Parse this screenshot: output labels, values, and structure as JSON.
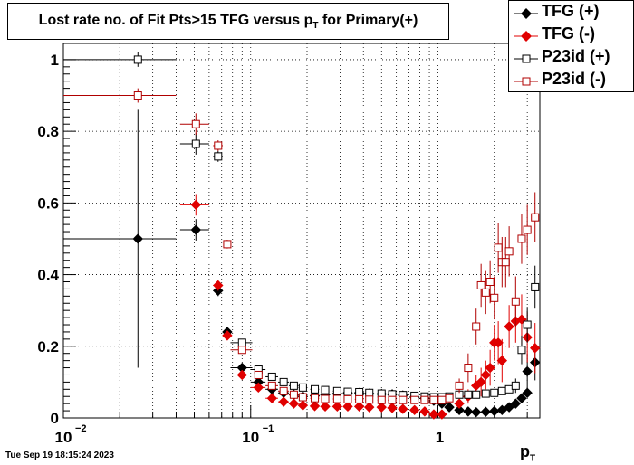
{
  "title": {
    "main": "Lost rate no. of Fit Pts>15 TFG versus p",
    "sub": "T",
    "tail": " for Primary(+)"
  },
  "timestamp": "Tue Sep 19 18:15:24 2023",
  "colors": {
    "black": "#000000",
    "red": "#e00000",
    "darkred": "#b00000",
    "grid": "#000000"
  },
  "chart_data": {
    "type": "scatter",
    "xscale": "log",
    "xlim": [
      0.01,
      3.5
    ],
    "ylim": [
      0,
      1.02
    ],
    "xlabel": {
      "main": "p",
      "sub": "T"
    },
    "xticks": [
      {
        "value": 0.01,
        "base": "10",
        "exp": "−2"
      },
      {
        "value": 0.1,
        "base": "10",
        "exp": "−1"
      },
      {
        "value": 1,
        "base": "1",
        "exp": ""
      }
    ],
    "yticks": [
      "0",
      "0.2",
      "0.4",
      "0.6",
      "0.8",
      "1"
    ],
    "grid": true,
    "legend_position": "top-right",
    "series": [
      {
        "name": "TFG (+)",
        "marker": "diamond",
        "filled": true,
        "color": "#000000",
        "points": [
          [
            0.025,
            0.5,
            0.015,
            0.36
          ],
          [
            0.051,
            0.525,
            0.009,
            0.03
          ],
          [
            0.067,
            0.355,
            0.004,
            0.015
          ],
          [
            0.075,
            0.24,
            0.003,
            0.012
          ],
          [
            0.09,
            0.14,
            0.012,
            0.01
          ],
          [
            0.11,
            0.1,
            0.01,
            0.01
          ],
          [
            0.13,
            0.08,
            0.01,
            0.008
          ],
          [
            0.15,
            0.07,
            0.01,
            0.006
          ],
          [
            0.17,
            0.065,
            0.01,
            0.005
          ],
          [
            0.19,
            0.06,
            0.01,
            0.004
          ],
          [
            0.22,
            0.062,
            0.012,
            0.004
          ],
          [
            0.25,
            0.065,
            0.012,
            0.004
          ],
          [
            0.29,
            0.068,
            0.015,
            0.004
          ],
          [
            0.33,
            0.07,
            0.015,
            0.004
          ],
          [
            0.38,
            0.07,
            0.02,
            0.004
          ],
          [
            0.43,
            0.068,
            0.02,
            0.004
          ],
          [
            0.5,
            0.067,
            0.025,
            0.004
          ],
          [
            0.57,
            0.066,
            0.03,
            0.004
          ],
          [
            0.65,
            0.063,
            0.03,
            0.004
          ],
          [
            0.75,
            0.058,
            0.035,
            0.004
          ],
          [
            0.85,
            0.055,
            0.04,
            0.005
          ],
          [
            0.95,
            0.048,
            0.04,
            0.005
          ],
          [
            1.05,
            0.04,
            0.04,
            0.005
          ],
          [
            1.15,
            0.03,
            0.04,
            0.005
          ],
          [
            1.3,
            0.022,
            0.05,
            0.004
          ],
          [
            1.45,
            0.018,
            0.05,
            0.004
          ],
          [
            1.6,
            0.016,
            0.05,
            0.004
          ],
          [
            1.8,
            0.017,
            0.06,
            0.004
          ],
          [
            2.0,
            0.019,
            0.06,
            0.005
          ],
          [
            2.2,
            0.022,
            0.06,
            0.005
          ],
          [
            2.4,
            0.03,
            0.06,
            0.006
          ],
          [
            2.6,
            0.04,
            0.07,
            0.007
          ],
          [
            2.8,
            0.055,
            0.08,
            0.008
          ],
          [
            3.0,
            0.07,
            0.08,
            0.01
          ],
          [
            3.0,
            0.13,
            0.05,
            0.05
          ],
          [
            3.3,
            0.155,
            0.05,
            0.05
          ]
        ]
      },
      {
        "name": "TFG (-)",
        "marker": "diamond",
        "filled": true,
        "color": "#e00000",
        "points": [
          [
            0.051,
            0.595,
            0.009,
            0.03
          ],
          [
            0.067,
            0.37,
            0.004,
            0.015
          ],
          [
            0.075,
            0.23,
            0.003,
            0.012
          ],
          [
            0.09,
            0.12,
            0.012,
            0.01
          ],
          [
            0.11,
            0.085,
            0.01,
            0.01
          ],
          [
            0.13,
            0.055,
            0.01,
            0.008
          ],
          [
            0.15,
            0.045,
            0.01,
            0.006
          ],
          [
            0.17,
            0.04,
            0.01,
            0.005
          ],
          [
            0.19,
            0.035,
            0.01,
            0.004
          ],
          [
            0.22,
            0.033,
            0.012,
            0.004
          ],
          [
            0.25,
            0.032,
            0.012,
            0.004
          ],
          [
            0.29,
            0.032,
            0.015,
            0.004
          ],
          [
            0.33,
            0.032,
            0.015,
            0.004
          ],
          [
            0.38,
            0.032,
            0.02,
            0.004
          ],
          [
            0.43,
            0.03,
            0.02,
            0.004
          ],
          [
            0.5,
            0.03,
            0.025,
            0.004
          ],
          [
            0.57,
            0.028,
            0.03,
            0.004
          ],
          [
            0.65,
            0.025,
            0.03,
            0.004
          ],
          [
            0.75,
            0.022,
            0.035,
            0.004
          ],
          [
            0.85,
            0.018,
            0.04,
            0.005
          ],
          [
            0.95,
            0.01,
            0.04,
            0.005
          ],
          [
            1.05,
            0.01,
            0.04,
            0.005
          ],
          [
            1.3,
            0.04,
            0.05,
            0.01
          ],
          [
            1.45,
            0.06,
            0.05,
            0.02
          ],
          [
            1.6,
            0.09,
            0.05,
            0.03
          ],
          [
            1.7,
            0.1,
            0.05,
            0.04
          ],
          [
            1.8,
            0.12,
            0.05,
            0.04
          ],
          [
            1.9,
            0.14,
            0.05,
            0.05
          ],
          [
            2.0,
            0.21,
            0.05,
            0.05
          ],
          [
            2.1,
            0.21,
            0.05,
            0.06
          ],
          [
            2.2,
            0.16,
            0.05,
            0.06
          ],
          [
            2.4,
            0.255,
            0.05,
            0.06
          ],
          [
            2.6,
            0.27,
            0.06,
            0.06
          ],
          [
            2.8,
            0.275,
            0.06,
            0.07
          ],
          [
            3.0,
            0.225,
            0.06,
            0.07
          ],
          [
            3.3,
            0.195,
            0.06,
            0.07
          ]
        ]
      },
      {
        "name": "P23id (+)",
        "marker": "square",
        "filled": false,
        "color": "#000000",
        "points": [
          [
            0.025,
            1.0,
            0.015,
            0.02
          ],
          [
            0.051,
            0.765,
            0.009,
            0.03
          ],
          [
            0.067,
            0.73,
            0.004,
            0.015
          ],
          [
            0.09,
            0.21,
            0.012,
            0.01
          ],
          [
            0.11,
            0.135,
            0.01,
            0.01
          ],
          [
            0.13,
            0.115,
            0.01,
            0.008
          ],
          [
            0.15,
            0.1,
            0.01,
            0.006
          ],
          [
            0.17,
            0.09,
            0.01,
            0.005
          ],
          [
            0.19,
            0.085,
            0.01,
            0.004
          ],
          [
            0.22,
            0.08,
            0.012,
            0.004
          ],
          [
            0.25,
            0.078,
            0.012,
            0.004
          ],
          [
            0.29,
            0.075,
            0.015,
            0.004
          ],
          [
            0.33,
            0.073,
            0.015,
            0.004
          ],
          [
            0.38,
            0.072,
            0.02,
            0.004
          ],
          [
            0.43,
            0.07,
            0.02,
            0.004
          ],
          [
            0.5,
            0.068,
            0.025,
            0.004
          ],
          [
            0.57,
            0.066,
            0.03,
            0.004
          ],
          [
            0.65,
            0.064,
            0.03,
            0.004
          ],
          [
            0.75,
            0.062,
            0.035,
            0.004
          ],
          [
            0.85,
            0.06,
            0.04,
            0.005
          ],
          [
            0.95,
            0.058,
            0.04,
            0.005
          ],
          [
            1.05,
            0.058,
            0.04,
            0.005
          ],
          [
            1.15,
            0.06,
            0.04,
            0.005
          ],
          [
            1.3,
            0.065,
            0.05,
            0.006
          ],
          [
            1.45,
            0.065,
            0.05,
            0.006
          ],
          [
            1.6,
            0.065,
            0.05,
            0.006
          ],
          [
            1.8,
            0.068,
            0.06,
            0.008
          ],
          [
            2.0,
            0.07,
            0.06,
            0.008
          ],
          [
            2.2,
            0.075,
            0.06,
            0.01
          ],
          [
            2.4,
            0.08,
            0.06,
            0.01
          ],
          [
            2.6,
            0.09,
            0.07,
            0.02
          ],
          [
            2.8,
            0.19,
            0.08,
            0.04
          ],
          [
            3.0,
            0.26,
            0.08,
            0.05
          ],
          [
            3.3,
            0.365,
            0.08,
            0.06
          ]
        ]
      },
      {
        "name": "P23id (-)",
        "marker": "square",
        "filled": false,
        "color": "#b00000",
        "points": [
          [
            0.025,
            0.9,
            0.015,
            0.02
          ],
          [
            0.051,
            0.82,
            0.009,
            0.03
          ],
          [
            0.067,
            0.76,
            0.004,
            0.015
          ],
          [
            0.075,
            0.485,
            0.003,
            0.012
          ],
          [
            0.09,
            0.19,
            0.012,
            0.01
          ],
          [
            0.11,
            0.12,
            0.01,
            0.01
          ],
          [
            0.13,
            0.09,
            0.01,
            0.008
          ],
          [
            0.15,
            0.075,
            0.01,
            0.006
          ],
          [
            0.17,
            0.065,
            0.01,
            0.005
          ],
          [
            0.19,
            0.058,
            0.01,
            0.004
          ],
          [
            0.22,
            0.055,
            0.012,
            0.004
          ],
          [
            0.25,
            0.053,
            0.012,
            0.004
          ],
          [
            0.29,
            0.053,
            0.015,
            0.004
          ],
          [
            0.33,
            0.052,
            0.015,
            0.004
          ],
          [
            0.38,
            0.052,
            0.02,
            0.004
          ],
          [
            0.43,
            0.051,
            0.02,
            0.004
          ],
          [
            0.5,
            0.05,
            0.025,
            0.004
          ],
          [
            0.57,
            0.05,
            0.03,
            0.004
          ],
          [
            0.65,
            0.05,
            0.03,
            0.004
          ],
          [
            0.75,
            0.05,
            0.035,
            0.004
          ],
          [
            0.85,
            0.05,
            0.04,
            0.005
          ],
          [
            0.95,
            0.05,
            0.04,
            0.005
          ],
          [
            1.05,
            0.05,
            0.04,
            0.005
          ],
          [
            1.15,
            0.055,
            0.04,
            0.005
          ],
          [
            1.3,
            0.09,
            0.05,
            0.02
          ],
          [
            1.45,
            0.14,
            0.05,
            0.04
          ],
          [
            1.6,
            0.255,
            0.05,
            0.05
          ],
          [
            1.7,
            0.37,
            0.05,
            0.06
          ],
          [
            1.8,
            0.35,
            0.05,
            0.06
          ],
          [
            1.9,
            0.38,
            0.05,
            0.06
          ],
          [
            2.0,
            0.335,
            0.05,
            0.06
          ],
          [
            2.1,
            0.475,
            0.05,
            0.07
          ],
          [
            2.2,
            0.435,
            0.05,
            0.07
          ],
          [
            2.3,
            0.435,
            0.05,
            0.07
          ],
          [
            2.4,
            0.465,
            0.05,
            0.07
          ],
          [
            2.6,
            0.325,
            0.06,
            0.07
          ],
          [
            2.8,
            0.5,
            0.06,
            0.07
          ],
          [
            3.0,
            0.525,
            0.06,
            0.07
          ],
          [
            3.3,
            0.56,
            0.06,
            0.07
          ]
        ]
      }
    ]
  }
}
